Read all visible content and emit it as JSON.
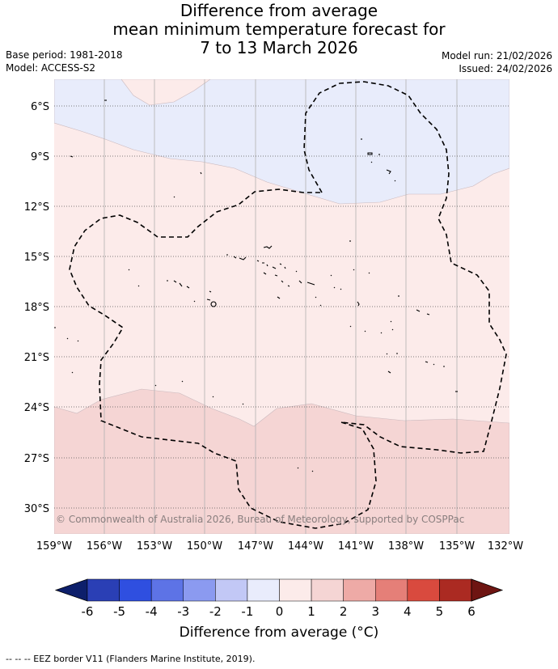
{
  "header": {
    "title_lines": [
      "Difference from average",
      "mean minimum temperature forecast for",
      "7 to 13 March 2026"
    ],
    "base_period": "Base period: 1981-2018",
    "model": "Model: ACCESS-S2",
    "model_run": "Model run: 21/02/2026",
    "issued": "Issued: 24/02/2026"
  },
  "map": {
    "lat_labels": [
      "6°S",
      "9°S",
      "12°S",
      "15°S",
      "18°S",
      "21°S",
      "24°S",
      "27°S",
      "30°S"
    ],
    "lon_labels": [
      "159°W",
      "156°W",
      "153°W",
      "150°W",
      "147°W",
      "144°W",
      "141°W",
      "138°W",
      "135°W",
      "132°W"
    ],
    "copyright": "© Commonwealth of Australia 2026, Bureau of Meteorology, supported by COSPPac",
    "fill_colors": {
      "neg1_0": "#e8ecfb",
      "pos0_1": "#fcebea",
      "pos1_2": "#f5d5d4"
    }
  },
  "colorbar": {
    "ticks": [
      "-6",
      "-5",
      "-4",
      "-3",
      "-2",
      "-1",
      "0",
      "1",
      "2",
      "3",
      "4",
      "5",
      "6"
    ],
    "colors": [
      "#0d1f6b",
      "#2a3fb5",
      "#2f4fe0",
      "#5d73e6",
      "#8b9af0",
      "#c2c8f6",
      "#e9ecfc",
      "#fcebea",
      "#f5d5d4",
      "#eeaaa6",
      "#e57f78",
      "#d94a3e",
      "#ab2a22",
      "#6e1512"
    ],
    "label": "Difference from average (°C)"
  },
  "footnote": "-- -- -- EEZ border V11 (Flanders Marine Institute, 2019)."
}
